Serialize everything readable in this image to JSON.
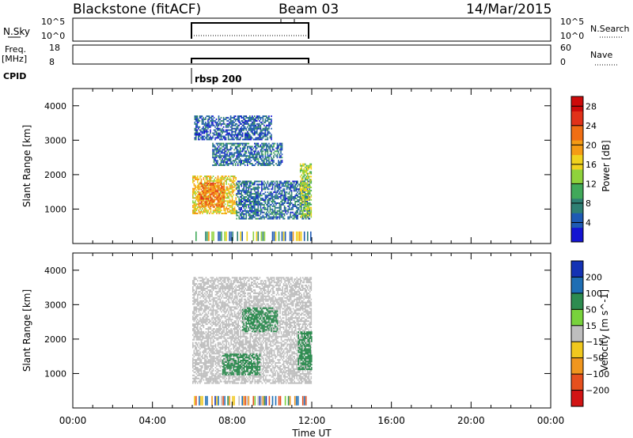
{
  "header": {
    "station": "Blackstone (fitACF)",
    "beam": "Beam 03",
    "date": "14/Mar/2015"
  },
  "mini_panels": {
    "nsky": {
      "label": "N.Sky",
      "left_ticks": [
        "10^5",
        "10^0"
      ],
      "right_ticks": [
        "10^5",
        "10^0"
      ],
      "right_label": "N.Search"
    },
    "freq": {
      "label_top": "Freq.",
      "label_bottom": "[MHz]",
      "left_ticks": [
        "18",
        "8"
      ],
      "right_ticks": [
        "60",
        "0"
      ],
      "right_label": "Nave"
    },
    "cpid": {
      "label": "CPID",
      "program": "rbsp 200"
    }
  },
  "chart_data": [
    {
      "type": "heatmap",
      "title": "",
      "xlabel": "Time UT",
      "ylabel": "Slant Range [km]",
      "xlim": [
        0,
        24
      ],
      "ylim": [
        0,
        4500
      ],
      "x_ticks": [
        "00:00",
        "04:00",
        "08:00",
        "12:00",
        "16:00",
        "20:00",
        "00:00"
      ],
      "y_ticks": [
        1000,
        2000,
        3000,
        4000
      ],
      "data_time_range": [
        "06:00",
        "12:00"
      ],
      "colorbar": {
        "label": "Power [dB]",
        "ticks": [
          4,
          8,
          12,
          16,
          20,
          24,
          28
        ],
        "range": [
          0,
          30
        ],
        "colors": [
          "#1414d2",
          "#1e5ab4",
          "#2e7f73",
          "#41a95a",
          "#8fd23c",
          "#f0d21e",
          "#f59b14",
          "#f06e14",
          "#e13219",
          "#cd0a0a"
        ]
      },
      "regions": [
        {
          "t0": 6.0,
          "t1": 8.2,
          "r0": 850,
          "r1": 1950,
          "value": 17
        },
        {
          "t0": 6.3,
          "t1": 7.6,
          "r0": 1050,
          "r1": 1750,
          "value": 22
        },
        {
          "t0": 8.2,
          "t1": 11.9,
          "r0": 700,
          "r1": 1800,
          "value": 6
        },
        {
          "t0": 7.0,
          "t1": 10.5,
          "r0": 2250,
          "r1": 2900,
          "value": 6
        },
        {
          "t0": 6.1,
          "t1": 10.0,
          "r0": 3000,
          "r1": 3700,
          "value": 5
        },
        {
          "t0": 11.4,
          "t1": 12.0,
          "r0": 750,
          "r1": 2300,
          "value": 14
        }
      ]
    },
    {
      "type": "heatmap",
      "title": "",
      "xlabel": "Time UT",
      "ylabel": "Slant Range [km]",
      "xlim": [
        0,
        24
      ],
      "ylim": [
        0,
        4500
      ],
      "x_ticks": [
        "00:00",
        "04:00",
        "08:00",
        "12:00",
        "16:00",
        "20:00",
        "00:00"
      ],
      "y_ticks": [
        1000,
        2000,
        3000,
        4000
      ],
      "data_time_range": [
        "06:00",
        "12:00"
      ],
      "colorbar": {
        "label": "Velocity [m s^-1]",
        "ticks": [
          200,
          100,
          50,
          15,
          -15,
          -50,
          -100,
          -200
        ],
        "colors": [
          "#1432b4",
          "#1e6eb4",
          "#2d8c50",
          "#78d23c",
          "#bebebe",
          "#f0c81e",
          "#f0961e",
          "#e6501e",
          "#d21414"
        ]
      },
      "regions": [
        {
          "t0": 6.0,
          "t1": 12.0,
          "r0": 700,
          "r1": 3800,
          "value": 0
        },
        {
          "t0": 7.5,
          "t1": 9.4,
          "r0": 950,
          "r1": 1550,
          "value": 40
        },
        {
          "t0": 11.3,
          "t1": 12.0,
          "r0": 1100,
          "r1": 2200,
          "value": 40
        },
        {
          "t0": 8.5,
          "t1": 10.3,
          "r0": 2200,
          "r1": 2900,
          "value": 30
        }
      ]
    }
  ]
}
